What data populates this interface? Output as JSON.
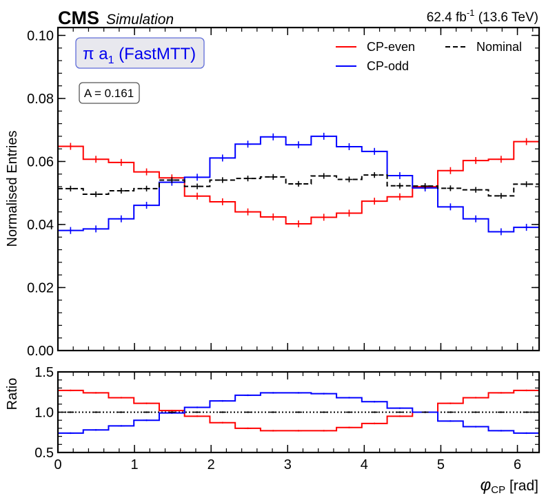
{
  "header": {
    "experiment": "CMS",
    "tag": "Simulation",
    "lumi_value": "62.4 fb",
    "lumi_exp": "-1",
    "energy": "(13.6 TeV)"
  },
  "annotation": {
    "channel_main": "π a",
    "channel_sub": "1",
    "channel_method": "(FastMTT)",
    "asymmetry": "A = 0.161",
    "channel_color": "#0000ee",
    "box_fill": "#e8e8ee",
    "box_stroke": "#5d6bd8"
  },
  "legend": {
    "entries": [
      {
        "label": "CP-even",
        "color": "#ff0000",
        "dash": false
      },
      {
        "label": "Nominal",
        "color": "#000000",
        "dash": true
      },
      {
        "label": "CP-odd",
        "color": "#0000ff",
        "dash": false
      }
    ]
  },
  "chart_data": [
    {
      "type": "line",
      "panel": "main",
      "drawstyle": "steps",
      "ylabel": "Normalised Entries",
      "xlim": [
        0,
        6.2832
      ],
      "ylim": [
        0,
        0.1025
      ],
      "yticks": [
        0.0,
        0.02,
        0.04,
        0.06,
        0.08,
        0.1
      ],
      "ytick_labels": [
        "0.00",
        "0.02",
        "0.04",
        "0.06",
        "0.08",
        "0.10"
      ],
      "x_edges": [
        0,
        0.3307,
        0.6614,
        0.9921,
        1.3228,
        1.6535,
        1.9842,
        2.3149,
        2.6456,
        2.9763,
        3.3069,
        3.6376,
        3.9683,
        4.299,
        4.6297,
        4.9604,
        5.2911,
        5.6218,
        5.9525,
        6.2832
      ],
      "series": [
        {
          "name": "CP-even",
          "color": "#ff0000",
          "dash": false,
          "values": [
            0.0648,
            0.0607,
            0.0597,
            0.0567,
            0.0548,
            0.049,
            0.0472,
            0.044,
            0.0424,
            0.0402,
            0.0423,
            0.0436,
            0.0474,
            0.0488,
            0.052,
            0.0571,
            0.0603,
            0.0607,
            0.0663
          ],
          "errors": [
            0.0011,
            0.0011,
            0.0011,
            0.0011,
            0.0011,
            0.0011,
            0.0011,
            0.0011,
            0.0011,
            0.0011,
            0.0011,
            0.0011,
            0.0011,
            0.0011,
            0.0011,
            0.0011,
            0.0011,
            0.0011,
            0.0011
          ]
        },
        {
          "name": "CP-odd",
          "color": "#0000ff",
          "dash": false,
          "values": [
            0.0381,
            0.0386,
            0.0418,
            0.0461,
            0.0534,
            0.055,
            0.0611,
            0.0655,
            0.0678,
            0.0653,
            0.068,
            0.0647,
            0.0632,
            0.0555,
            0.0516,
            0.0456,
            0.0418,
            0.0377,
            0.0391
          ],
          "errors": [
            0.0011,
            0.0011,
            0.0011,
            0.0011,
            0.0011,
            0.0011,
            0.0011,
            0.0011,
            0.0011,
            0.0011,
            0.0011,
            0.0011,
            0.0011,
            0.0011,
            0.0011,
            0.0011,
            0.0011,
            0.0011,
            0.0011
          ]
        },
        {
          "name": "Nominal",
          "color": "#000000",
          "dash": true,
          "values": [
            0.0514,
            0.0496,
            0.0507,
            0.0514,
            0.0541,
            0.0521,
            0.0541,
            0.0546,
            0.0551,
            0.0529,
            0.0554,
            0.0543,
            0.0557,
            0.0523,
            0.0522,
            0.0515,
            0.051,
            0.0491,
            0.0528
          ],
          "errors": [
            0.0009,
            0.0009,
            0.0009,
            0.0009,
            0.0009,
            0.0009,
            0.0009,
            0.0009,
            0.0009,
            0.0009,
            0.0009,
            0.0009,
            0.0009,
            0.0009,
            0.0009,
            0.0009,
            0.0009,
            0.0009,
            0.0009
          ]
        }
      ]
    },
    {
      "type": "line",
      "panel": "ratio",
      "drawstyle": "steps",
      "ylabel": "Ratio",
      "xlabel_main": "φ",
      "xlabel_sub": "CP",
      "xlabel_unit": " [rad]",
      "xlim": [
        0,
        6.2832
      ],
      "ylim": [
        0.5,
        1.5
      ],
      "xticks": [
        0,
        1,
        2,
        3,
        4,
        5,
        6
      ],
      "xtick_labels": [
        "0",
        "1",
        "2",
        "3",
        "4",
        "5",
        "6"
      ],
      "yticks": [
        0.5,
        1.0,
        1.5
      ],
      "ytick_labels": [
        "0.5",
        "1.0",
        "1.5"
      ],
      "reference_line": 1.0,
      "series": [
        {
          "name": "CP-even",
          "color": "#ff0000",
          "dash": false,
          "values": [
            1.27,
            1.24,
            1.18,
            1.11,
            1.02,
            0.95,
            0.87,
            0.8,
            0.77,
            0.77,
            0.77,
            0.81,
            0.86,
            0.95,
            1.0,
            1.11,
            1.18,
            1.24,
            1.27
          ],
          "errors": [
            0.01,
            0.01,
            0.01,
            0.01,
            0.01,
            0.01,
            0.01,
            0.01,
            0.01,
            0.01,
            0.01,
            0.01,
            0.01,
            0.01,
            0.01,
            0.01,
            0.01,
            0.01,
            0.01
          ]
        },
        {
          "name": "CP-odd",
          "color": "#0000ff",
          "dash": false,
          "values": [
            0.74,
            0.78,
            0.83,
            0.9,
            0.99,
            1.06,
            1.14,
            1.21,
            1.24,
            1.24,
            1.23,
            1.18,
            1.13,
            1.05,
            1.0,
            0.89,
            0.82,
            0.77,
            0.74
          ],
          "errors": [
            0.01,
            0.01,
            0.01,
            0.01,
            0.01,
            0.01,
            0.01,
            0.01,
            0.01,
            0.01,
            0.01,
            0.01,
            0.01,
            0.01,
            0.01,
            0.01,
            0.01,
            0.01,
            0.01
          ]
        },
        {
          "name": "Nominal",
          "color": "#000000",
          "dash": true,
          "values": [
            1,
            1,
            1,
            1,
            1,
            1,
            1,
            1,
            1,
            1,
            1,
            1,
            1,
            1,
            1,
            1,
            1,
            1,
            1
          ],
          "errors": [
            0.01,
            0.01,
            0.01,
            0.01,
            0.01,
            0.01,
            0.01,
            0.01,
            0.01,
            0.01,
            0.01,
            0.01,
            0.01,
            0.01,
            0.01,
            0.01,
            0.01,
            0.01,
            0.01
          ]
        }
      ]
    }
  ]
}
